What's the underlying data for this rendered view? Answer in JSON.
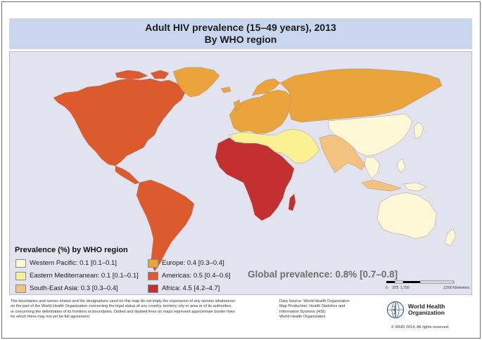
{
  "title": {
    "line1": "Adult HIV prevalence (15–49 years), 2013",
    "line2": "By WHO region"
  },
  "legend": {
    "title": "Prevalence (%) by WHO region",
    "items": [
      {
        "label": "Western Pacific: 0.1 [0.1–0.1]",
        "color": "#fff7d6"
      },
      {
        "label": "Eastern Mediterranean: 0.1 [0.1–0.1]",
        "color": "#fbf194"
      },
      {
        "label": "South-East Asia: 0.3 [0.3–0.4]",
        "color": "#f3c27f"
      },
      {
        "label": "Europe: 0.4 [0.3–0.4]",
        "color": "#eba33c"
      },
      {
        "label": "Americas: 0.5 [0.4–0.6]",
        "color": "#dc5a2d"
      },
      {
        "label": "Africa: 4.5 [4.2–4.7]",
        "color": "#c3302f"
      }
    ]
  },
  "global_prevalence": "Global prevalence: 0.8% [0.7–0.8]",
  "scale_bar": {
    "labels": [
      "0",
      "875",
      "1,750",
      "3,500 Kilometers"
    ]
  },
  "disclaimer": [
    "The boundaries and names shown and the designations used on this map do not imply the expression of any opinion whatsoever",
    "on the part of the World Health Organization concerning the legal status of any country, territory, city or area or of its authorities,",
    "or concerning the delimitation of its frontiers or boundaries. Dotted and dashed lines on maps represent approximate border lines",
    "for which there may not yet be full agreement."
  ],
  "source": [
    "Data Source: World Health Organization",
    "Map Production: Health Statistics and",
    "Information Systems (HSI)",
    "World Health Organization"
  ],
  "organization": {
    "line1": "World Health",
    "line2": "Organization"
  },
  "copyright": "© WHO 2014. All rights reserved.",
  "colors": {
    "ocean": "#e3e3ef",
    "title_bar": "#c9d6ee",
    "western_pacific": "#fff7d6",
    "eastern_mediterranean": "#fbf194",
    "south_east_asia": "#f3c27f",
    "europe": "#eba33c",
    "americas": "#dc5a2d",
    "africa": "#c3302f",
    "who_blue": "#3f5d8a"
  }
}
